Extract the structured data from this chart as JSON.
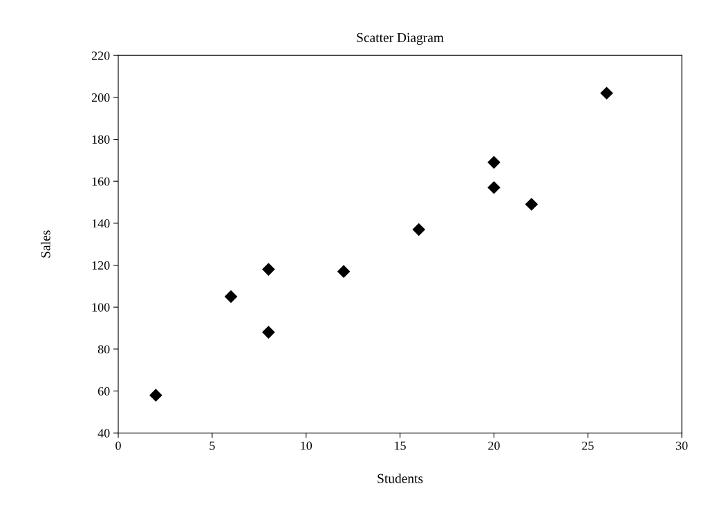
{
  "chart_data": {
    "type": "scatter",
    "title": "Scatter Diagram",
    "xlabel": "Students",
    "ylabel": "Sales",
    "x": [
      2,
      6,
      8,
      8,
      12,
      16,
      20,
      20,
      22,
      26
    ],
    "values": [
      58,
      105,
      88,
      118,
      117,
      137,
      157,
      169,
      149,
      202
    ],
    "color": "#000000",
    "marker": "diamond",
    "xlim": [
      0,
      30
    ],
    "xticks": [
      0,
      5,
      10,
      15,
      20,
      25,
      30
    ],
    "ylim": [
      40,
      220
    ],
    "yticks": [
      40,
      60,
      80,
      100,
      120,
      140,
      160,
      180,
      200,
      220
    ],
    "grid": false,
    "legend": false
  }
}
